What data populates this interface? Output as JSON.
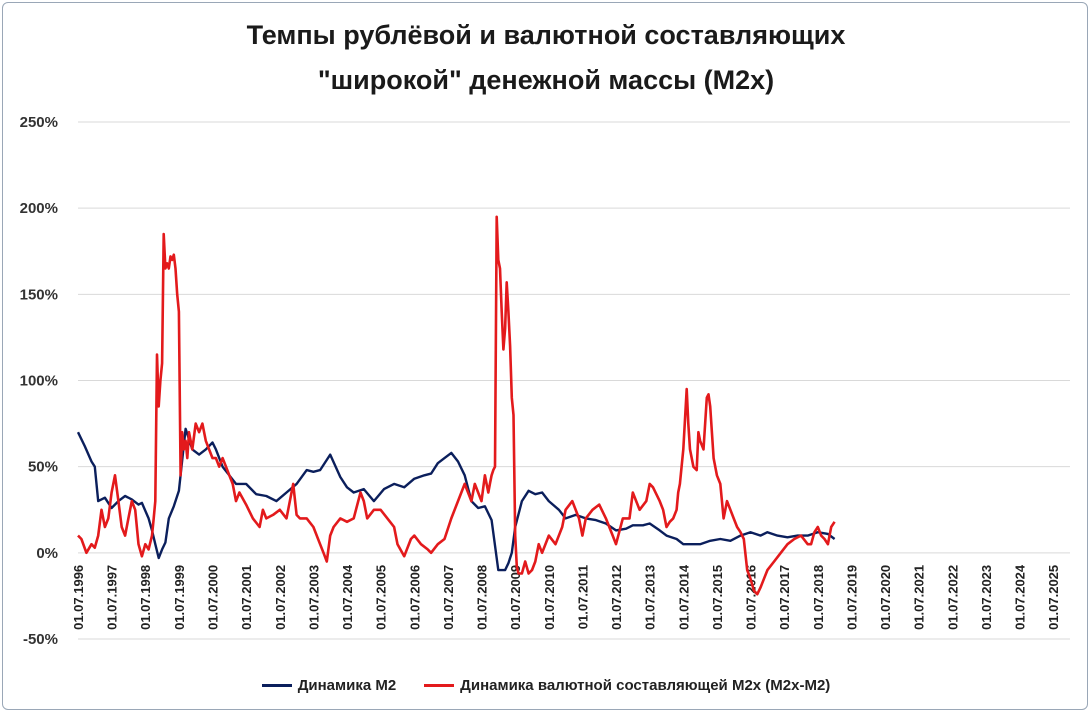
{
  "colors": {
    "m2": "#0b1f5c",
    "fx": "#e31a1c",
    "grid": "#d9d9d9"
  },
  "chart_data": {
    "type": "line",
    "title": "Темпы рублёвой и валютной составляющих",
    "subtitle": "\"широкой\" денежной массы (М2х)",
    "ylim": [
      -50,
      250
    ],
    "yticks": [
      "250%",
      "200%",
      "150%",
      "100%",
      "50%",
      "0%",
      "-50%"
    ],
    "ytick_values": [
      250,
      200,
      150,
      100,
      50,
      0,
      -50
    ],
    "xlim": [
      1996.5,
      2026.0
    ],
    "xticks": [
      "01.07.1996",
      "01.07.1997",
      "01.07.1998",
      "01.07.1999",
      "01.07.2000",
      "01.07.2001",
      "01.07.2002",
      "01.07.2003",
      "01.07.2004",
      "01.07.2005",
      "01.07.2006",
      "01.07.2007",
      "01.07.2008",
      "01.07.2009",
      "01.07.2010",
      "01.07.2011",
      "01.07.2012",
      "01.07.2013",
      "01.07.2014",
      "01.07.2015",
      "01.07.2016",
      "01.07.2017",
      "01.07.2018",
      "01.07.2019",
      "01.07.2020",
      "01.07.2021",
      "01.07.2022",
      "01.07.2023",
      "01.07.2024",
      "01.07.2025"
    ],
    "xtick_values": [
      1996.5,
      1997.5,
      1998.5,
      1999.5,
      2000.5,
      2001.5,
      2002.5,
      2003.5,
      2004.5,
      2005.5,
      2006.5,
      2007.5,
      2008.5,
      2009.5,
      2010.5,
      2011.5,
      2012.5,
      2013.5,
      2014.5,
      2015.5,
      2016.5,
      2017.5,
      2018.5,
      2019.5,
      2020.5,
      2021.5,
      2022.5,
      2023.5,
      2024.5,
      2025.5
    ],
    "grid": true,
    "legend_position": "bottom",
    "series": [
      {
        "name": "Динамика М2",
        "color": "#0b1f5c",
        "x": [
          1996.5,
          1996.7,
          1996.9,
          1997.0,
          1997.1,
          1997.3,
          1997.5,
          1997.7,
          1997.9,
          1998.1,
          1998.3,
          1998.4,
          1998.6,
          1998.7,
          1998.8,
          1998.9,
          1999.0,
          1999.1,
          1999.2,
          1999.35,
          1999.5,
          1999.7,
          1999.9,
          2000.1,
          2000.3,
          2000.5,
          2000.6,
          2000.8,
          2001.0,
          2001.2,
          2001.5,
          2001.8,
          2002.1,
          2002.4,
          2002.7,
          2003.0,
          2003.3,
          2003.5,
          2003.7,
          2004.0,
          2004.3,
          2004.5,
          2004.7,
          2005.0,
          2005.3,
          2005.6,
          2005.9,
          2006.2,
          2006.5,
          2006.8,
          2007.0,
          2007.2,
          2007.4,
          2007.6,
          2007.8,
          2008.0,
          2008.2,
          2008.4,
          2008.6,
          2008.8,
          2009.0,
          2009.1,
          2009.2,
          2009.3,
          2009.4,
          2009.5,
          2009.7,
          2009.9,
          2010.1,
          2010.3,
          2010.5,
          2010.8,
          2011.0,
          2011.3,
          2011.6,
          2011.9,
          2012.2,
          2012.5,
          2012.8,
          2013.0,
          2013.3,
          2013.5,
          2013.8,
          2014.0,
          2014.3,
          2014.5,
          2014.7,
          2015.0,
          2015.3,
          2015.6,
          2015.9,
          2016.2,
          2016.5,
          2016.8,
          2017.0,
          2017.3,
          2017.6,
          2017.9,
          2018.2,
          2018.5,
          2018.8,
          2019.0
        ],
        "y": [
          70,
          62,
          53,
          50,
          30,
          32,
          26,
          30,
          33,
          31,
          28,
          29,
          20,
          13,
          5,
          -3,
          2,
          6,
          20,
          27,
          36,
          72,
          60,
          57,
          60,
          64,
          60,
          50,
          45,
          40,
          40,
          34,
          33,
          30,
          35,
          40,
          48,
          47,
          48,
          57,
          44,
          38,
          35,
          37,
          30,
          37,
          40,
          38,
          43,
          45,
          46,
          52,
          55,
          58,
          53,
          45,
          30,
          26,
          27,
          19,
          -10,
          -10,
          -10,
          -6,
          0,
          15,
          30,
          36,
          34,
          35,
          30,
          25,
          20,
          22,
          20,
          19,
          17,
          13,
          14,
          16,
          16,
          17,
          13,
          10,
          8,
          5,
          5,
          5,
          7,
          8,
          7,
          10,
          12,
          10,
          12,
          10,
          9,
          10,
          10,
          12,
          11,
          8
        ]
      },
      {
        "name": "Динамика валютной составляющей М2х (М2х-М2)",
        "color": "#e31a1c",
        "x": [
          1996.5,
          1996.6,
          1996.75,
          1996.9,
          1997.0,
          1997.1,
          1997.2,
          1997.3,
          1997.4,
          1997.5,
          1997.6,
          1997.7,
          1997.8,
          1997.9,
          1998.0,
          1998.1,
          1998.2,
          1998.3,
          1998.4,
          1998.5,
          1998.6,
          1998.7,
          1998.75,
          1998.8,
          1998.85,
          1998.9,
          1998.95,
          1999.0,
          1999.05,
          1999.1,
          1999.15,
          1999.2,
          1999.25,
          1999.3,
          1999.35,
          1999.4,
          1999.45,
          1999.5,
          1999.55,
          1999.6,
          1999.65,
          1999.7,
          1999.75,
          1999.8,
          1999.9,
          2000.0,
          2000.1,
          2000.2,
          2000.3,
          2000.4,
          2000.5,
          2000.6,
          2000.7,
          2000.8,
          2000.9,
          2001.0,
          2001.1,
          2001.2,
          2001.3,
          2001.5,
          2001.7,
          2001.9,
          2002.0,
          2002.1,
          2002.3,
          2002.5,
          2002.7,
          2002.9,
          2003.0,
          2003.1,
          2003.3,
          2003.5,
          2003.7,
          2003.8,
          2003.9,
          2004.0,
          2004.1,
          2004.3,
          2004.5,
          2004.7,
          2004.9,
          2005.0,
          2005.1,
          2005.3,
          2005.5,
          2005.7,
          2005.9,
          2006.0,
          2006.2,
          2006.4,
          2006.5,
          2006.7,
          2006.9,
          2007.0,
          2007.2,
          2007.4,
          2007.6,
          2007.8,
          2008.0,
          2008.2,
          2008.3,
          2008.5,
          2008.6,
          2008.7,
          2008.75,
          2008.8,
          2008.85,
          2008.9,
          2008.95,
          2009.0,
          2009.05,
          2009.1,
          2009.15,
          2009.2,
          2009.25,
          2009.3,
          2009.35,
          2009.4,
          2009.45,
          2009.5,
          2009.55,
          2009.6,
          2009.7,
          2009.8,
          2009.9,
          2010.0,
          2010.1,
          2010.2,
          2010.3,
          2010.5,
          2010.7,
          2010.9,
          2011.0,
          2011.2,
          2011.4,
          2011.5,
          2011.6,
          2011.8,
          2012.0,
          2012.2,
          2012.4,
          2012.5,
          2012.7,
          2012.9,
          2013.0,
          2013.2,
          2013.4,
          2013.5,
          2013.6,
          2013.8,
          2013.9,
          2014.0,
          2014.1,
          2014.2,
          2014.3,
          2014.35,
          2014.4,
          2014.5,
          2014.6,
          2014.65,
          2014.7,
          2014.8,
          2014.9,
          2014.95,
          2015.0,
          2015.1,
          2015.2,
          2015.25,
          2015.3,
          2015.4,
          2015.5,
          2015.6,
          2015.7,
          2015.8,
          2015.9,
          2016.0,
          2016.1,
          2016.2,
          2016.3,
          2016.4,
          2016.5,
          2016.6,
          2016.7,
          2016.8,
          2016.9,
          2017.0,
          2017.2,
          2017.4,
          2017.6,
          2017.8,
          2018.0,
          2018.2,
          2018.3,
          2018.4,
          2018.5,
          2018.6,
          2018.7,
          2018.8,
          2018.9,
          2019.0
        ],
        "y": [
          10,
          8,
          0,
          5,
          3,
          10,
          25,
          15,
          20,
          35,
          45,
          30,
          15,
          10,
          20,
          30,
          25,
          5,
          -2,
          5,
          2,
          10,
          20,
          30,
          115,
          85,
          100,
          110,
          185,
          165,
          168,
          165,
          172,
          170,
          173,
          165,
          150,
          140,
          45,
          70,
          60,
          65,
          55,
          70,
          60,
          75,
          70,
          75,
          65,
          60,
          55,
          55,
          50,
          55,
          50,
          45,
          40,
          30,
          35,
          28,
          20,
          15,
          25,
          20,
          22,
          25,
          20,
          40,
          22,
          20,
          20,
          15,
          5,
          0,
          -5,
          10,
          15,
          20,
          18,
          20,
          35,
          30,
          20,
          25,
          25,
          20,
          15,
          5,
          -2,
          8,
          10,
          5,
          2,
          0,
          5,
          8,
          20,
          30,
          40,
          30,
          40,
          30,
          45,
          35,
          40,
          45,
          48,
          50,
          195,
          170,
          165,
          140,
          118,
          130,
          157,
          140,
          120,
          90,
          80,
          10,
          -8,
          -12,
          -12,
          -5,
          -12,
          -10,
          -5,
          5,
          0,
          10,
          5,
          15,
          25,
          30,
          20,
          10,
          20,
          25,
          28,
          20,
          10,
          5,
          20,
          20,
          35,
          25,
          30,
          40,
          38,
          30,
          25,
          15,
          18,
          20,
          25,
          35,
          40,
          60,
          95,
          75,
          60,
          50,
          48,
          70,
          65,
          60,
          90,
          92,
          85,
          55,
          45,
          40,
          20,
          30,
          25,
          20,
          15,
          12,
          8,
          -10,
          -15,
          -22,
          -24,
          -20,
          -15,
          -10,
          -5,
          0,
          5,
          8,
          10,
          5,
          5,
          12,
          15,
          10,
          8,
          5,
          15,
          18
        ]
      }
    ]
  }
}
